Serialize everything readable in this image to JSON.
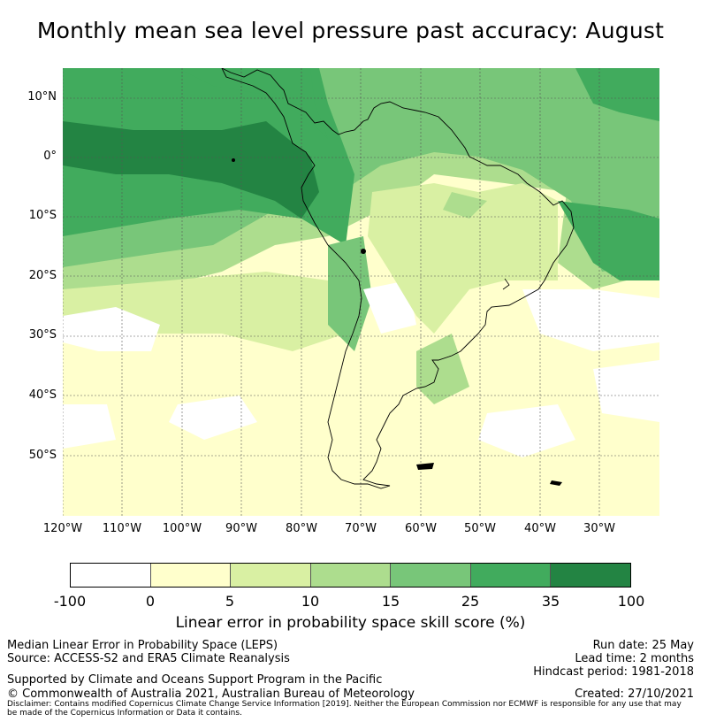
{
  "title": "Monthly mean sea level pressure past accuracy: August",
  "map": {
    "lat_labels": [
      "10°N",
      "0°",
      "10°S",
      "20°S",
      "30°S",
      "40°S",
      "50°S"
    ],
    "lon_labels": [
      "120°W",
      "110°W",
      "100°W",
      "90°W",
      "80°W",
      "70°W",
      "60°W",
      "50°W",
      "40°W",
      "30°W"
    ]
  },
  "colorbar": {
    "ticks": [
      "-100",
      "0",
      "5",
      "10",
      "15",
      "25",
      "35",
      "100"
    ],
    "colors": [
      "#ffffff",
      "#ffffcc",
      "#d9f0a3",
      "#addd8e",
      "#78c679",
      "#41ab5d",
      "#238443"
    ],
    "label": "Linear error in probability space skill score (%)"
  },
  "footer": {
    "left_line1": "Median Linear Error in Probability Space (LEPS)",
    "left_line2": "Source: ACCESS-S2 and ERA5 Climate Reanalysis",
    "left_line3": "Supported by Climate and Oceans Support Program in the Pacific",
    "left_line4": "© Commonwealth of Australia 2021, Australian Bureau of Meteorology",
    "run_date": "Run date: 25 May",
    "lead_time": "Lead time: 2 months",
    "hindcast": "Hindcast period: 1981-2018",
    "created": "Created: 27/10/2021",
    "disclaimer1": "Disclaimer: Contains modified Copernicus Climate Change Service Information [2019]. Neither the European Commission nor ECMWF is responsible for any use that may",
    "disclaimer2": "be made of the Copernicus Information or Data it contains."
  }
}
